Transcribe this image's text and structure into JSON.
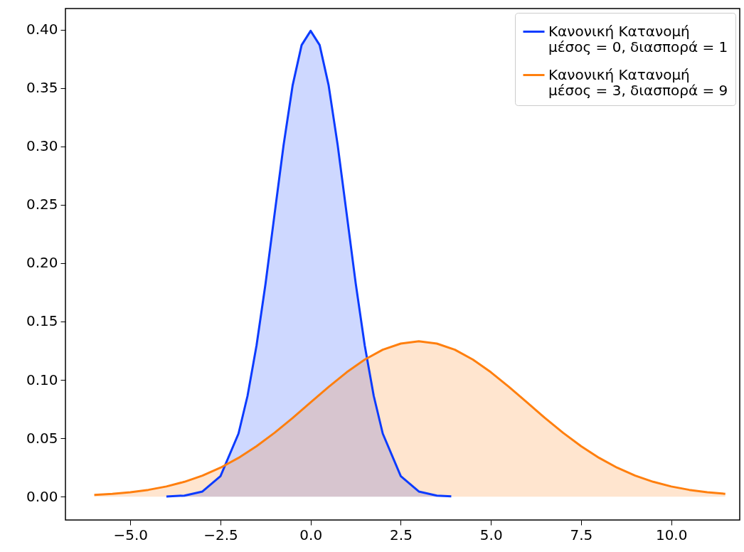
{
  "chart_data": {
    "type": "area",
    "legend": "top right",
    "grid": false,
    "xlim": [
      -6.8,
      11.9
    ],
    "ylim": [
      -0.02,
      0.418
    ],
    "xticks": [
      {
        "value": -5,
        "label": "−5.0"
      },
      {
        "value": -2.5,
        "label": "−2.5"
      },
      {
        "value": 0,
        "label": "0.0"
      },
      {
        "value": 2.5,
        "label": "2.5"
      },
      {
        "value": 5,
        "label": "5.0"
      },
      {
        "value": 7.5,
        "label": "7.5"
      },
      {
        "value": 10,
        "label": "10.0"
      }
    ],
    "yticks": [
      {
        "value": 0,
        "label": "0.00"
      },
      {
        "value": 0.05,
        "label": "0.05"
      },
      {
        "value": 0.1,
        "label": "0.10"
      },
      {
        "value": 0.15,
        "label": "0.15"
      },
      {
        "value": 0.2,
        "label": "0.20"
      },
      {
        "value": 0.25,
        "label": "0.25"
      },
      {
        "value": 0.3,
        "label": "0.30"
      },
      {
        "value": 0.35,
        "label": "0.35"
      },
      {
        "value": 0.4,
        "label": "0.40"
      }
    ],
    "series": [
      {
        "name": "Κανονική Κατανομή\n μέσος = 0, διασπορά = 1",
        "color": "#0b3bff",
        "x": [
          -4,
          -3.5,
          -3,
          -2.5,
          -2,
          -1.75,
          -1.5,
          -1.25,
          -1,
          -0.75,
          -0.5,
          -0.25,
          0,
          0.25,
          0.5,
          0.75,
          1,
          1.25,
          1.5,
          1.75,
          2,
          2.5,
          3,
          3.5,
          3.9
        ],
        "values": [
          0.0001,
          0.0009,
          0.0044,
          0.0175,
          0.054,
          0.0863,
          0.1295,
          0.1826,
          0.242,
          0.3011,
          0.3521,
          0.3867,
          0.3989,
          0.3867,
          0.3521,
          0.3011,
          0.242,
          0.1826,
          0.1295,
          0.0863,
          0.054,
          0.0175,
          0.0044,
          0.0009,
          0.0002
        ]
      },
      {
        "name": "Κανονική Κατανομή\n μέσος = 3, διασπορά = 9",
        "color": "#ff7f0e",
        "x": [
          -6,
          -5.5,
          -5,
          -4.5,
          -4,
          -3.5,
          -3,
          -2.5,
          -2,
          -1.5,
          -1,
          -0.5,
          0,
          0.5,
          1,
          1.5,
          2,
          2.5,
          3,
          3.5,
          4,
          4.5,
          5,
          5.5,
          6,
          6.5,
          7,
          7.5,
          8,
          8.5,
          9,
          9.5,
          10,
          10.5,
          11,
          11.5
        ],
        "values": [
          0.0015,
          0.0024,
          0.0038,
          0.0058,
          0.0087,
          0.0127,
          0.018,
          0.0248,
          0.0332,
          0.0432,
          0.0547,
          0.0673,
          0.0807,
          0.094,
          0.1065,
          0.1174,
          0.1258,
          0.1311,
          0.133,
          0.1311,
          0.1258,
          0.1174,
          0.1065,
          0.094,
          0.0807,
          0.0673,
          0.0547,
          0.0432,
          0.0332,
          0.0248,
          0.018,
          0.0127,
          0.0087,
          0.0058,
          0.0038,
          0.0024
        ]
      }
    ]
  }
}
